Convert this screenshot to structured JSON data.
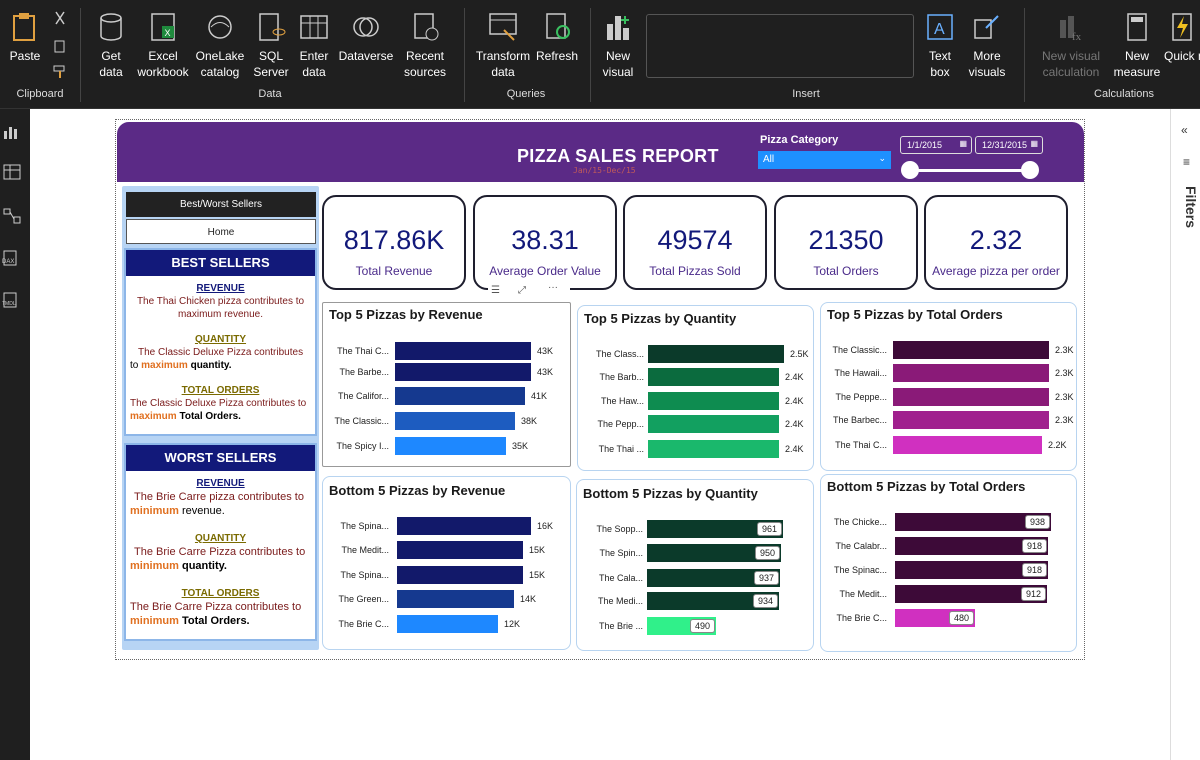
{
  "ribbon": {
    "paste": "Paste",
    "get_data": "Get data",
    "excel_workbook": "Excel workbook",
    "onelake_catalog": "OneLake catalog",
    "sql_server": "SQL Server",
    "enter_data": "Enter data",
    "dataverse": "Dataverse",
    "recent_sources": "Recent sources",
    "transform_data": "Transform data",
    "refresh": "Refresh",
    "new_visual": "New visual",
    "text_box": "Text box",
    "more_visuals": "More visuals",
    "new_visual_calc": "New visual calculation",
    "new_measure": "New measure",
    "quick_measure": "Quick measure",
    "groups": {
      "clipboard": "Clipboard",
      "data": "Data",
      "queries": "Queries",
      "insert": "Insert",
      "calculations": "Calculations"
    }
  },
  "filters_pane": "Filters",
  "report": {
    "title": "PIZZA SALES REPORT",
    "subtitle": "Jan/15-Dec/15",
    "slicer": {
      "label": "Pizza Category",
      "value": "All"
    },
    "date_from": "1/1/2015",
    "date_to": "12/31/2015"
  },
  "nav": {
    "best_worst": "Best/Worst Sellers",
    "home": "Home"
  },
  "best": {
    "head": "BEST SELLERS",
    "revenue_h": "REVENUE",
    "revenue_a": "The Thai Chicken pizza contributes to",
    "revenue_b": "maximum",
    "revenue_c": "revenue.",
    "qty_h": "QUANTITY",
    "qty_a": "The Classic Deluxe Pizza contributes",
    "qty_b": "to",
    "qty_c": "maximum",
    "qty_d": "quantity.",
    "orders_h": "TOTAL ORDERS",
    "orders_a": "The Classic Deluxe Pizza contributes to",
    "orders_b": "maximum",
    "orders_c": "Total Orders."
  },
  "worst": {
    "head": "WORST SELLERS",
    "revenue_h": "REVENUE",
    "revenue_a": "The Brie Carre pizza contributes to",
    "revenue_b": "minimum",
    "revenue_c": "revenue.",
    "qty_h": "QUANTITY",
    "qty_a": "The Brie Carre Pizza contributes to",
    "qty_b": "minimum",
    "qty_c": "quantity.",
    "orders_h": "TOTAL ORDERS",
    "orders_a": "The  Brie Carre Pizza contributes to",
    "orders_b": "minimum",
    "orders_c": "Total Orders."
  },
  "kpis": [
    {
      "value": "817.86K",
      "label": "Total Revenue"
    },
    {
      "value": "38.31",
      "label": "Average Order Value"
    },
    {
      "value": "49574",
      "label": "Total Pizzas Sold"
    },
    {
      "value": "21350",
      "label": "Total Orders"
    },
    {
      "value": "2.32",
      "label": "Average pizza per order"
    }
  ],
  "chart_data": [
    {
      "type": "bar",
      "title": "Top 5 Pizzas by Revenue",
      "categories": [
        "The Thai C...",
        "The Barbe...",
        "The Califor...",
        "The Classic...",
        "The Spicy I..."
      ],
      "values": [
        43,
        43,
        41,
        38,
        35
      ],
      "labels": [
        "43K",
        "43K",
        "41K",
        "38K",
        "35K"
      ],
      "colors": [
        "#12196a",
        "#12196a",
        "#15398f",
        "#1d5cc0",
        "#1e88ff"
      ]
    },
    {
      "type": "bar",
      "title": "Top 5 Pizzas by Quantity",
      "categories": [
        "The Class...",
        "The Barb...",
        "The Haw...",
        "The Pepp...",
        "The Thai ..."
      ],
      "values": [
        2.5,
        2.4,
        2.4,
        2.4,
        2.4
      ],
      "labels": [
        "2.5K",
        "2.4K",
        "2.4K",
        "2.4K",
        "2.4K"
      ],
      "colors": [
        "#0b3a2a",
        "#0b6b3e",
        "#0e8c50",
        "#12a060",
        "#1ab86c"
      ]
    },
    {
      "type": "bar",
      "title": "Top 5 Pizzas by Total Orders",
      "categories": [
        "The Classic...",
        "The Hawaii...",
        "The Peppe...",
        "The Barbec...",
        "The Thai C..."
      ],
      "values": [
        2.3,
        2.3,
        2.3,
        2.3,
        2.2
      ],
      "labels": [
        "2.3K",
        "2.3K",
        "2.3K",
        "2.3K",
        "2.2K"
      ],
      "colors": [
        "#3d0a38",
        "#8a1a78",
        "#8a1a78",
        "#a0208e",
        "#d030c0"
      ]
    },
    {
      "type": "bar",
      "title": "Bottom 5 Pizzas by Revenue",
      "categories": [
        "The Spina...",
        "The Medit...",
        "The Spina...",
        "The Green...",
        "The Brie C..."
      ],
      "values": [
        16,
        15,
        15,
        14,
        12
      ],
      "labels": [
        "16K",
        "15K",
        "15K",
        "14K",
        "12K"
      ],
      "colors": [
        "#12196a",
        "#12196a",
        "#12196a",
        "#15398f",
        "#1e88ff"
      ]
    },
    {
      "type": "bar",
      "title": "Bottom 5 Pizzas by Quantity",
      "categories": [
        "The Sopp...",
        "The Spin...",
        "The Cala...",
        "The Medi...",
        "The Brie ..."
      ],
      "values": [
        961,
        950,
        937,
        934,
        490
      ],
      "labels": [
        "961",
        "950",
        "937",
        "934",
        "490"
      ],
      "colors": [
        "#0b3a2a",
        "#0b3a2a",
        "#0b3a2a",
        "#0b3a2a",
        "#30f08a"
      ]
    },
    {
      "type": "bar",
      "title": "Bottom 5 Pizzas by Total Orders",
      "categories": [
        "The Chicke...",
        "The Calabr...",
        "The Spinac...",
        "The Medit...",
        "The Brie C..."
      ],
      "values": [
        938,
        918,
        918,
        912,
        480
      ],
      "labels": [
        "938",
        "918",
        "918",
        "912",
        "480"
      ],
      "colors": [
        "#3d0a38",
        "#3d0a38",
        "#3d0a38",
        "#3d0a38",
        "#d030c0"
      ]
    }
  ]
}
